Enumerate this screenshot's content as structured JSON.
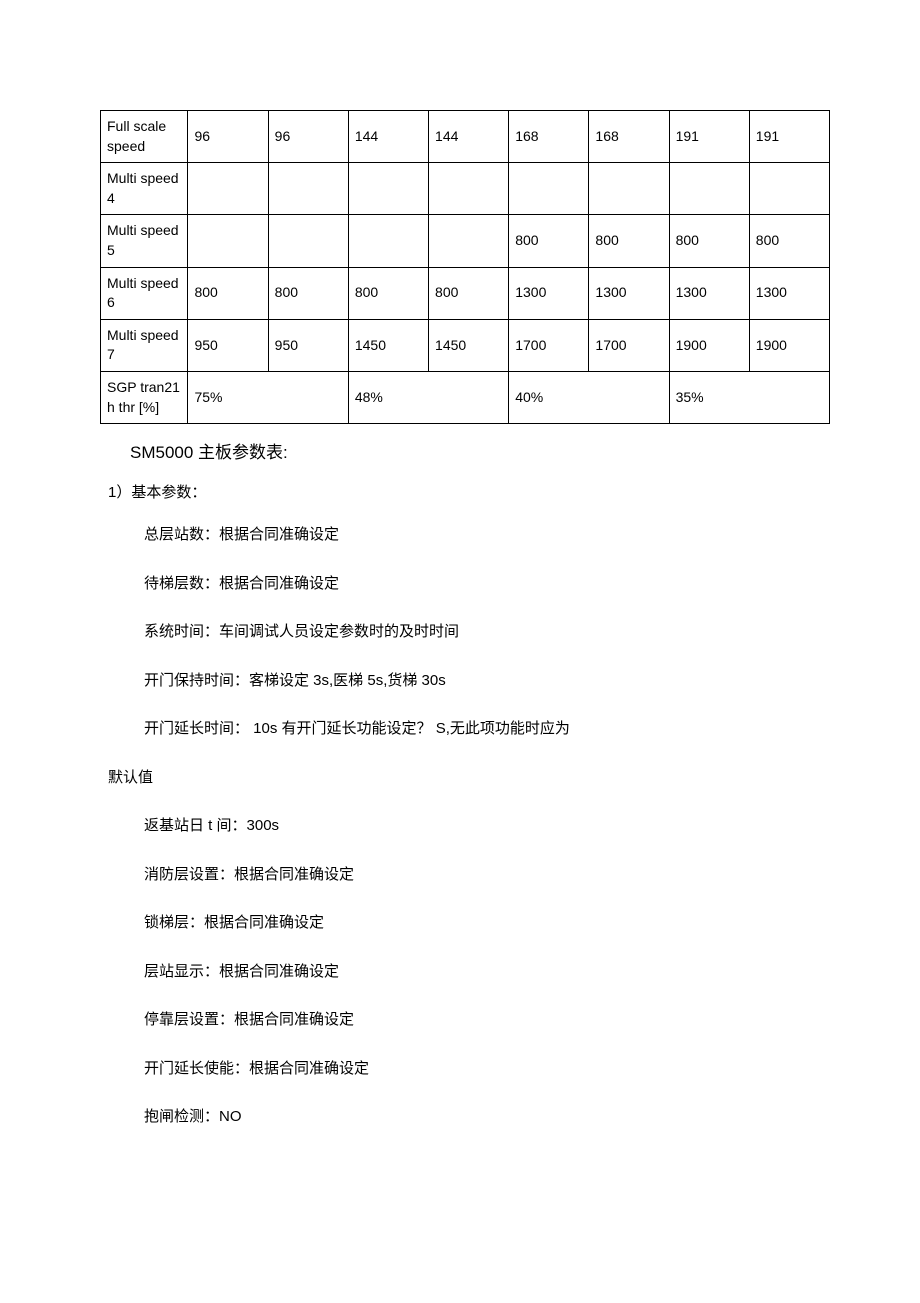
{
  "table": {
    "rows": [
      {
        "label": "Full scale speed",
        "cells": [
          "96",
          "96",
          "144",
          "144",
          "168",
          "168",
          "191",
          "191"
        ],
        "spans": [
          1,
          1,
          1,
          1,
          1,
          1,
          1,
          1
        ]
      },
      {
        "label": "Multi speed 4",
        "cells": [
          "",
          "",
          "",
          "",
          "",
          "",
          "",
          ""
        ],
        "spans": [
          1,
          1,
          1,
          1,
          1,
          1,
          1,
          1
        ]
      },
      {
        "label": "Multi speed 5",
        "cells": [
          "",
          "",
          "",
          "",
          "800",
          "800",
          "800",
          "800"
        ],
        "spans": [
          1,
          1,
          1,
          1,
          1,
          1,
          1,
          1
        ]
      },
      {
        "label": "Multi speed 6",
        "cells": [
          "800",
          "800",
          "800",
          "800",
          "1300",
          "1300",
          "1300",
          "1300"
        ],
        "spans": [
          1,
          1,
          1,
          1,
          1,
          1,
          1,
          1
        ]
      },
      {
        "label": "Multi speed 7",
        "cells": [
          "950",
          "950",
          "1450",
          "1450",
          "1700",
          "1700",
          "1900",
          "1900"
        ],
        "spans": [
          1,
          1,
          1,
          1,
          1,
          1,
          1,
          1
        ]
      },
      {
        "label": "SGP tran21 h thr [%]",
        "cells": [
          "75%",
          "48%",
          "40%",
          "35%"
        ],
        "spans": [
          2,
          2,
          2,
          2
        ]
      }
    ]
  },
  "section_title": "SM5000 主板参数表:",
  "subhead": "1）基本参数：",
  "paras": [
    "总层站数：根据合同准确设定",
    "待梯层数：根据合同准确设定",
    "系统时间：车间调试人员设定参数时的及时时间",
    "开门保持时间：客梯设定 3s,医梯 5s,货梯 30s",
    "开门延长时间： 10s 有开门延长功能设定？ S,无此项功能时应为"
  ],
  "para_out1": "默认值",
  "paras2": [
    "返基站日 t 间：300s",
    "消防层设置：根据合同准确设定",
    "锁梯层：根据合同准确设定",
    "层站显示：根据合同准确设定",
    "停靠层设置：根据合同准确设定",
    "开门延长使能：根据合同准确设定",
    "抱闸检测：NO"
  ]
}
